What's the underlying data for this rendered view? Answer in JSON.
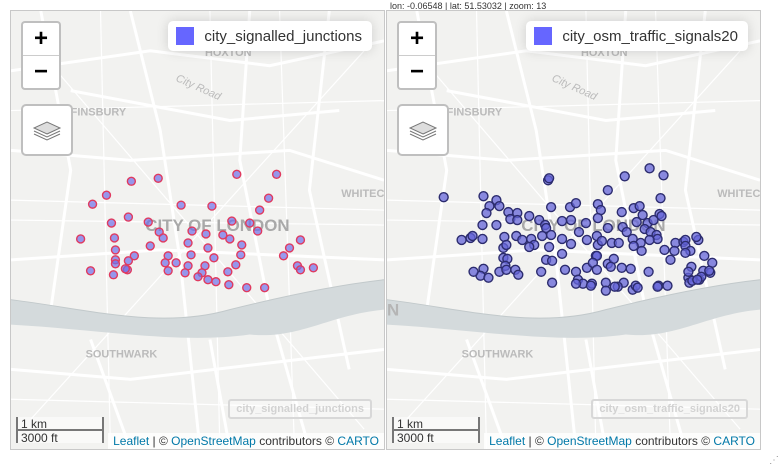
{
  "status": {
    "coords": "lon: -0.06548 | lat: 51.53032 | zoom: 13"
  },
  "map_labels": {
    "hoxton": "HOXTON",
    "city_road": "City Road",
    "finsbury": "FINSBURY",
    "whitechapel": "WHITEC",
    "city_of_london": "CITY OF LONDON",
    "southwark": "SOUTHWARK",
    "edge_n": "N"
  },
  "controls": {
    "zoom_in": "+",
    "zoom_out": "−"
  },
  "scale": {
    "metric": "1 km",
    "imperial": "3000 ft"
  },
  "attribution": {
    "leaflet": "Leaflet",
    "sep": "| ©",
    "osm": "OpenStreetMap",
    "contributors": "contributors ©",
    "carto": "CARTO"
  },
  "colors": {
    "signalled_fill": "#6f6fe8",
    "signalled_stroke": "#e03a5f",
    "osm_fill": "#6464d8",
    "osm_stroke": "#2c2c6e",
    "swatch": "#6666ff",
    "water": "#d4dadc"
  },
  "panels": [
    {
      "legend": "city_signalled_junctions",
      "layer_label": "city_signalled_junctions",
      "marker_style": "signalled",
      "points": [
        [
          121,
          171
        ],
        [
          96,
          185
        ],
        [
          148,
          168
        ],
        [
          227,
          164
        ],
        [
          267,
          164
        ],
        [
          82,
          194
        ],
        [
          259,
          188
        ],
        [
          171,
          195
        ],
        [
          202,
          196
        ],
        [
          250,
          200
        ],
        [
          118,
          207
        ],
        [
          101,
          213
        ],
        [
          138,
          212
        ],
        [
          222,
          211
        ],
        [
          240,
          213
        ],
        [
          248,
          221
        ],
        [
          149,
          222
        ],
        [
          182,
          221
        ],
        [
          196,
          224
        ],
        [
          213,
          225
        ],
        [
          153,
          228
        ],
        [
          140,
          236
        ],
        [
          104,
          228
        ],
        [
          70,
          229
        ],
        [
          178,
          233
        ],
        [
          198,
          238
        ],
        [
          220,
          229
        ],
        [
          232,
          235
        ],
        [
          291,
          230
        ],
        [
          280,
          238
        ],
        [
          274,
          246
        ],
        [
          105,
          240
        ],
        [
          181,
          245
        ],
        [
          158,
          246
        ],
        [
          124,
          246
        ],
        [
          204,
          248
        ],
        [
          231,
          245
        ],
        [
          105,
          250
        ],
        [
          155,
          253
        ],
        [
          166,
          253
        ],
        [
          178,
          256
        ],
        [
          195,
          256
        ],
        [
          118,
          251
        ],
        [
          105,
          254
        ],
        [
          226,
          255
        ],
        [
          117,
          260
        ],
        [
          103,
          265
        ],
        [
          192,
          263
        ],
        [
          158,
          261
        ],
        [
          288,
          256
        ],
        [
          291,
          260
        ],
        [
          304,
          258
        ],
        [
          80,
          261
        ],
        [
          115,
          259
        ],
        [
          218,
          262
        ],
        [
          175,
          263
        ],
        [
          188,
          267
        ],
        [
          198,
          270
        ],
        [
          206,
          272
        ],
        [
          219,
          275
        ],
        [
          237,
          278
        ],
        [
          255,
          278
        ]
      ]
    },
    {
      "legend": "city_osm_traffic_signals20",
      "layer_label": "city_osm_traffic_signals20",
      "marker_style": "osm",
      "points": [
        [
          57,
          187
        ],
        [
          97,
          186
        ],
        [
          110,
          190
        ],
        [
          103,
          196
        ],
        [
          113,
          196
        ],
        [
          162,
          170
        ],
        [
          163,
          168
        ],
        [
          239,
          166
        ],
        [
          264,
          158
        ],
        [
          222,
          180
        ],
        [
          278,
          165
        ],
        [
          275,
          188
        ],
        [
          100,
          203
        ],
        [
          122,
          202
        ],
        [
          165,
          197
        ],
        [
          184,
          197
        ],
        [
          190,
          193
        ],
        [
          212,
          194
        ],
        [
          215,
          200
        ],
        [
          236,
          202
        ],
        [
          248,
          198
        ],
        [
          254,
          196
        ],
        [
          257,
          205
        ],
        [
          274,
          204
        ],
        [
          131,
          203
        ],
        [
          143,
          206
        ],
        [
          96,
          215
        ],
        [
          110,
          215
        ],
        [
          124,
          209
        ],
        [
          131,
          210
        ],
        [
          153,
          210
        ],
        [
          159,
          215
        ],
        [
          176,
          211
        ],
        [
          185,
          210
        ],
        [
          200,
          213
        ],
        [
          212,
          208
        ],
        [
          222,
          218
        ],
        [
          237,
          217
        ],
        [
          251,
          212
        ],
        [
          262,
          213
        ],
        [
          268,
          210
        ],
        [
          276,
          206
        ],
        [
          160,
          218
        ],
        [
          156,
          226
        ],
        [
          165,
          225
        ],
        [
          130,
          226
        ],
        [
          136,
          230
        ],
        [
          145,
          229
        ],
        [
          118,
          227
        ],
        [
          176,
          229
        ],
        [
          193,
          222
        ],
        [
          211,
          226
        ],
        [
          226,
          233
        ],
        [
          241,
          222
        ],
        [
          247,
          229
        ],
        [
          259,
          219
        ],
        [
          265,
          222
        ],
        [
          271,
          225
        ],
        [
          272,
          229
        ],
        [
          96,
          229
        ],
        [
          117,
          238
        ],
        [
          120,
          235
        ],
        [
          148,
          235
        ],
        [
          163,
          237
        ],
        [
          185,
          234
        ],
        [
          201,
          230
        ],
        [
          212,
          235
        ],
        [
          216,
          231
        ],
        [
          233,
          233
        ],
        [
          255,
          233
        ],
        [
          264,
          230
        ],
        [
          290,
          233
        ],
        [
          298,
          232
        ],
        [
          300,
          230
        ],
        [
          313,
          230
        ],
        [
          311,
          227
        ],
        [
          300,
          236
        ],
        [
          75,
          230
        ],
        [
          84,
          228
        ],
        [
          86,
          226
        ],
        [
          117,
          248
        ],
        [
          121,
          249
        ],
        [
          143,
          237
        ],
        [
          160,
          250
        ],
        [
          166,
          251
        ],
        [
          176,
          244
        ],
        [
          210,
          246
        ],
        [
          211,
          246
        ],
        [
          222,
          254
        ],
        [
          228,
          249
        ],
        [
          248,
          236
        ],
        [
          256,
          241
        ],
        [
          279,
          240
        ],
        [
          289,
          241
        ],
        [
          305,
          241
        ],
        [
          319,
          246
        ],
        [
          327,
          253
        ],
        [
          306,
          257
        ],
        [
          97,
          259
        ],
        [
          119,
          256
        ],
        [
          94,
          266
        ],
        [
          102,
          268
        ],
        [
          129,
          260
        ],
        [
          132,
          265
        ],
        [
          155,
          262
        ],
        [
          179,
          260
        ],
        [
          190,
          262
        ],
        [
          201,
          258
        ],
        [
          207,
          253
        ],
        [
          211,
          260
        ],
        [
          225,
          257
        ],
        [
          236,
          258
        ],
        [
          245,
          259
        ],
        [
          263,
          262
        ],
        [
          285,
          250
        ],
        [
          300,
          243
        ],
        [
          318,
          261
        ],
        [
          303,
          268
        ],
        [
          325,
          263
        ],
        [
          314,
          270
        ],
        [
          87,
          262
        ],
        [
          113,
          262
        ],
        [
          120,
          260
        ],
        [
          192,
          270
        ],
        [
          197,
          274
        ],
        [
          206,
          274
        ],
        [
          220,
          273
        ],
        [
          238,
          273
        ],
        [
          247,
          280
        ],
        [
          232,
          277
        ],
        [
          250,
          276
        ],
        [
          273,
          276
        ],
        [
          303,
          262
        ],
        [
          304,
          273
        ],
        [
          316,
          267
        ],
        [
          324,
          261
        ],
        [
          220,
          281
        ],
        [
          252,
          278
        ],
        [
          272,
          277
        ],
        [
          282,
          276
        ],
        [
          307,
          271
        ],
        [
          312,
          270
        ],
        [
          229,
          277
        ],
        [
          205,
          276
        ],
        [
          166,
          273
        ],
        [
          190,
          274
        ]
      ]
    }
  ]
}
